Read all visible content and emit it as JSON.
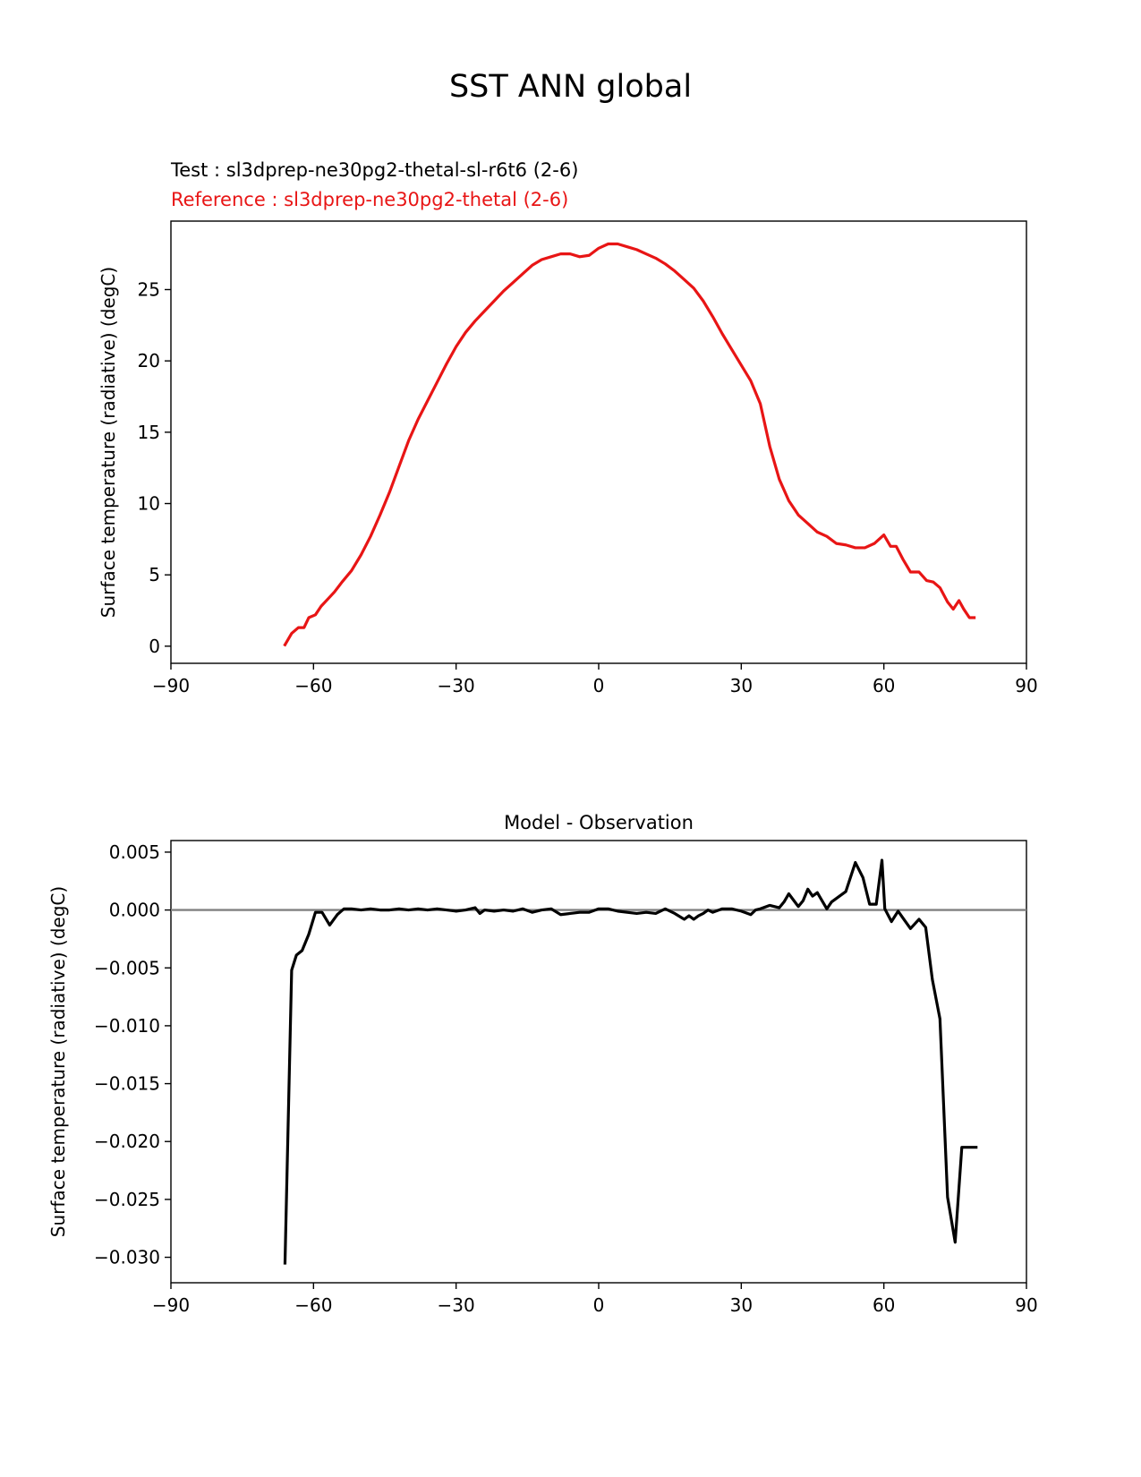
{
  "figure": {
    "title": "SST ANN global",
    "test_label": "Test : sl3dprep-ne30pg2-thetal-sl-r6t6 (2-6)",
    "reference_label": "Reference : sl3dprep-ne30pg2-thetal (2-6)"
  },
  "colors": {
    "test_line": "#000000",
    "reference_line": "#e81515",
    "reference_text": "#e81515",
    "diff_line": "#000000",
    "zero_line": "#808080"
  },
  "chart_data": [
    {
      "type": "line",
      "title": "",
      "xlabel": "",
      "ylabel": "Surface temperature (radiative) (degC)",
      "xlim": [
        -90,
        90
      ],
      "ylim": [
        -1.2,
        29.8
      ],
      "xticks": [
        -90,
        -60,
        -30,
        0,
        30,
        60,
        90
      ],
      "xtick_labels": [
        "−90",
        "−60",
        "−30",
        "0",
        "30",
        "60",
        "90"
      ],
      "yticks": [
        0,
        5,
        10,
        15,
        20,
        25
      ],
      "ytick_labels": [
        "0",
        "5",
        "10",
        "15",
        "20",
        "25"
      ],
      "grid": false,
      "series": [
        {
          "name": "Reference : sl3dprep-ne30pg2-thetal (2-6)",
          "color": "#e81515",
          "x": [
            -66,
            -64.6,
            -63.2,
            -62,
            -61,
            -59.6,
            -58.4,
            -57,
            -55.6,
            -54,
            -52,
            -50,
            -48,
            -46,
            -44,
            -42,
            -40,
            -38,
            -36,
            -34,
            -32,
            -30,
            -28,
            -26,
            -24,
            -22,
            -20,
            -18,
            -16,
            -14,
            -12,
            -10,
            -8,
            -6,
            -4,
            -2,
            0,
            2,
            4,
            6,
            8,
            10,
            12,
            14,
            16,
            18,
            20,
            22,
            24,
            26,
            28,
            30,
            32,
            34,
            36,
            38,
            40,
            42,
            44,
            46,
            48,
            50,
            52,
            54,
            56,
            58,
            60,
            61.4,
            62.6,
            64,
            65.6,
            67.4,
            69,
            70.4,
            71.8,
            73.4,
            74.6,
            75.8,
            76.8,
            78,
            79
          ],
          "y": [
            0.1,
            0.9,
            1.3,
            1.3,
            2.0,
            2.2,
            2.8,
            3.3,
            3.8,
            4.5,
            5.3,
            6.4,
            7.7,
            9.2,
            10.8,
            12.6,
            14.4,
            15.9,
            17.2,
            18.5,
            19.8,
            21.0,
            22.0,
            22.8,
            23.5,
            24.2,
            24.9,
            25.5,
            26.1,
            26.7,
            27.1,
            27.3,
            27.5,
            27.5,
            27.3,
            27.4,
            27.9,
            28.2,
            28.2,
            28.0,
            27.8,
            27.5,
            27.2,
            26.8,
            26.3,
            25.7,
            25.1,
            24.2,
            23.1,
            21.9,
            20.8,
            19.7,
            18.6,
            17.0,
            14.0,
            11.7,
            10.2,
            9.2,
            8.6,
            8.0,
            7.7,
            7.2,
            7.1,
            6.9,
            6.9,
            7.2,
            7.8,
            7.0,
            7.0,
            6.1,
            5.2,
            5.2,
            4.6,
            4.5,
            4.1,
            3.1,
            2.6,
            3.2,
            2.6,
            2.0,
            2.0
          ]
        }
      ]
    },
    {
      "type": "line",
      "title": "Model - Observation",
      "xlabel": "",
      "ylabel": "Surface temperature (radiative) (degC)",
      "xlim": [
        -90,
        90
      ],
      "ylim": [
        -0.0322,
        0.006
      ],
      "xticks": [
        -90,
        -60,
        -30,
        0,
        30,
        60,
        90
      ],
      "xtick_labels": [
        "−90",
        "−60",
        "−30",
        "0",
        "30",
        "60",
        "90"
      ],
      "yticks": [
        0.005,
        0,
        -0.005,
        -0.01,
        -0.015,
        -0.02,
        -0.025,
        -0.03
      ],
      "ytick_labels": [
        "0.005",
        "0.000",
        "−0.005",
        "−0.010",
        "−0.015",
        "−0.020",
        "−0.025",
        "−0.030"
      ],
      "grid": false,
      "reference_line": 0,
      "series": [
        {
          "name": "",
          "color": "#000000",
          "x": [
            -66,
            -64.6,
            -63.6,
            -62.4,
            -61,
            -59.6,
            -58.2,
            -56.6,
            -55,
            -53.6,
            -52,
            -50,
            -48,
            -46,
            -44,
            -42,
            -40,
            -38,
            -36,
            -34,
            -32,
            -30,
            -28,
            -26,
            -25,
            -24,
            -22,
            -20,
            -18,
            -16,
            -14,
            -12,
            -10,
            -8,
            -6,
            -4,
            -2,
            0,
            2,
            4,
            6,
            8,
            10,
            12,
            14,
            16,
            18,
            19,
            20,
            21,
            22,
            23,
            24,
            26,
            28,
            30,
            32,
            33,
            34,
            36,
            38,
            39,
            40,
            42,
            43,
            44,
            45,
            46,
            48,
            49,
            50,
            52,
            54,
            55.6,
            57,
            58.4,
            59.6,
            60.2,
            61.6,
            63,
            64.2,
            65.6,
            67.4,
            68.8,
            70.2,
            71.8,
            73.4,
            75,
            76.4,
            77.8,
            79.4
          ],
          "y": [
            -0.0305,
            -0.0052,
            -0.0039,
            -0.0035,
            -0.0021,
            -0.0002,
            -0.0002,
            -0.0013,
            -0.0004,
            0.0001,
            0.0001,
            0.0,
            0.0001,
            0.0,
            0.0,
            0.0001,
            0.0,
            0.0001,
            0.0,
            0.0001,
            0.0,
            -0.0001,
            0.0,
            0.0002,
            -0.0003,
            0.0,
            -0.0001,
            0.0,
            -0.0001,
            0.0001,
            -0.0002,
            0.0,
            0.0001,
            -0.0004,
            -0.0003,
            -0.0002,
            -0.0002,
            0.0001,
            0.0001,
            -0.0001,
            -0.0002,
            -0.0003,
            -0.0002,
            -0.0003,
            0.0001,
            -0.0003,
            -0.0008,
            -0.0005,
            -0.0008,
            -0.0005,
            -0.0003,
            0.0,
            -0.0002,
            0.0001,
            0.0001,
            -0.0001,
            -0.0004,
            0.0,
            0.0001,
            0.0004,
            0.0002,
            0.0007,
            0.0014,
            0.0003,
            0.0008,
            0.0018,
            0.0012,
            0.0015,
            0.0001,
            0.0007,
            0.001,
            0.0016,
            0.0041,
            0.0028,
            0.0005,
            0.0005,
            0.0043,
            0.0001,
            -0.001,
            -0.0001,
            -0.0008,
            -0.0016,
            -0.0008,
            -0.0015,
            -0.006,
            -0.0094,
            -0.0248,
            -0.0287,
            -0.0205,
            -0.0205,
            -0.0205
          ]
        }
      ]
    }
  ]
}
